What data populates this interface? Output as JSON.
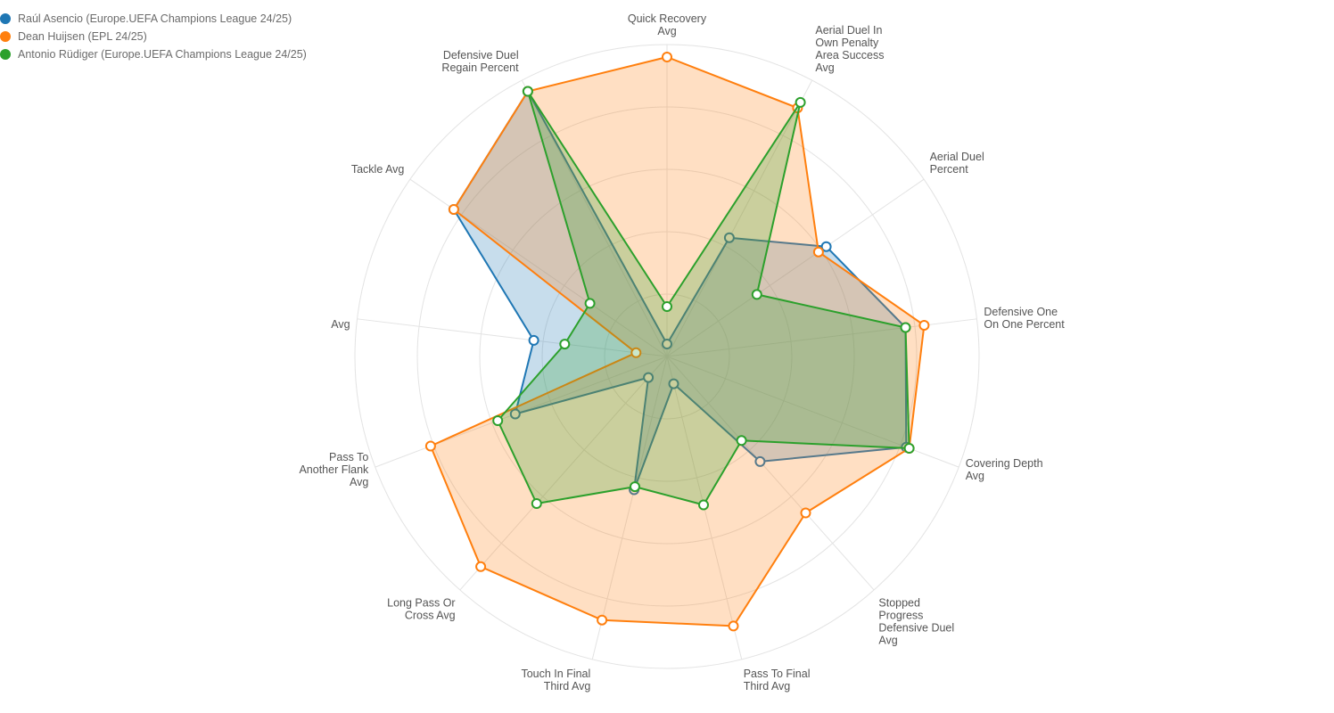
{
  "chart_data": {
    "type": "radar",
    "max": 1.0,
    "levels": 5,
    "legend_position": "top-left",
    "axes": [
      {
        "lines": [
          "Quick Recovery",
          "Avg"
        ]
      },
      {
        "lines": [
          "Aerial Duel In",
          "Own Penalty",
          "Area Success",
          "Avg"
        ]
      },
      {
        "lines": [
          "Aerial Duel",
          "Percent"
        ]
      },
      {
        "lines": [
          "Defensive One",
          "On One Percent"
        ]
      },
      {
        "lines": [
          "Covering Depth",
          "Avg"
        ]
      },
      {
        "lines": [
          "Stopped",
          "Progress",
          "Defensive Duel",
          "Avg"
        ]
      },
      {
        "lines": [
          "Pass To Final",
          "Third Avg"
        ]
      },
      {
        "lines": [
          "Touch In Final",
          "Third Avg"
        ]
      },
      {
        "lines": [
          "Long Pass Or",
          "Cross Avg"
        ]
      },
      {
        "lines": [
          "Pass To",
          "Another Flank",
          "Avg"
        ]
      },
      {
        "lines": [
          "",
          "Avg"
        ]
      },
      {
        "lines": [
          "Tackle Avg"
        ]
      },
      {
        "lines": [
          "Defensive Duel",
          "Regain Percent"
        ]
      }
    ],
    "series": [
      {
        "name": "Raúl Asencio (Europe.UEFA Champions League 24/25)",
        "color": "#1f77b4",
        "fill": "rgba(31,119,180,0.25)",
        "values": [
          0.04,
          0.43,
          0.62,
          0.77,
          0.82,
          0.45,
          0.09,
          0.44,
          0.09,
          0.52,
          0.43,
          0.83,
          0.96
        ]
      },
      {
        "name": "Dean Huijsen (EPL 24/25)",
        "color": "#ff7f0e",
        "fill": "rgba(255,127,14,0.25)",
        "values": [
          0.96,
          0.9,
          0.59,
          0.83,
          0.83,
          0.67,
          0.89,
          0.87,
          0.9,
          0.81,
          0.1,
          0.83,
          0.96
        ]
      },
      {
        "name": "Antonio Rüdiger (Europe.UEFA Champions League 24/25)",
        "color": "#2ca02c",
        "fill": "rgba(44,160,44,0.25)",
        "values": [
          0.16,
          0.92,
          0.35,
          0.77,
          0.83,
          0.36,
          0.49,
          0.43,
          0.63,
          0.58,
          0.33,
          0.3,
          0.96
        ]
      }
    ]
  }
}
